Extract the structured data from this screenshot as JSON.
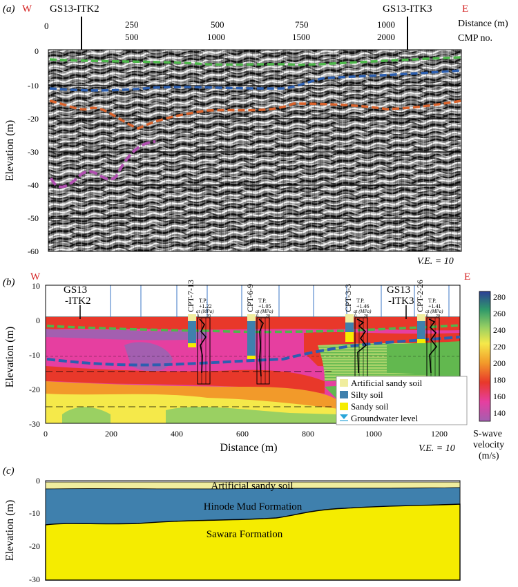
{
  "colors": {
    "west": "#d42020",
    "east": "#d42020",
    "green_horizon": "#4db84a",
    "blue_horizon": "#2c5fb0",
    "orange_horizon": "#d9622b",
    "purple_horizon": "#b04fb0",
    "artificial_sandy_soil": "#f0ed9e",
    "silty_soil": "#3f80ad",
    "sandy_soil": "#f5ec00",
    "groundwater": "#2aa5d9"
  },
  "panel_a": {
    "label": "(a)",
    "west_label": "W",
    "east_label": "E",
    "borehole_left": "GS13-ITK2",
    "borehole_right": "GS13-ITK3",
    "distance_unit": "Distance (m)",
    "cmp_unit": "CMP no.",
    "distance_ticks": [
      "0",
      "250",
      "500",
      "750",
      "1000"
    ],
    "cmp_ticks": [
      "500",
      "1000",
      "1500",
      "2000"
    ],
    "ylabel": "Elevation (m)",
    "y_ticks": [
      "0",
      "-10",
      "-20",
      "-30",
      "-40",
      "-50",
      "-60"
    ],
    "ve": "V.E. = 10"
  },
  "panel_b": {
    "label": "(b)",
    "west_label": "W",
    "east_label": "E",
    "borehole_left": [
      "GS13",
      "-ITK2"
    ],
    "borehole_right": [
      "GS13",
      "-ITK3"
    ],
    "ylabel": "Elevation (m)",
    "xlabel": "Distance (m)",
    "y_ticks": [
      "10",
      "0",
      "-10",
      "-20",
      "-30"
    ],
    "x_ticks": [
      "0",
      "200",
      "400",
      "600",
      "800",
      "1000",
      "1200"
    ],
    "ve": "V.E. = 10",
    "cpts": [
      {
        "name": "CPT-7-13",
        "tp": "T.P.",
        "tp_val": "+1.22",
        "qt": "qt (MPa)",
        "scale0": "0",
        "scale20": "20"
      },
      {
        "name": "CPT-6-9",
        "tp": "T.P.",
        "tp_val": "+1.05",
        "qt": "qt (MPa)",
        "scale0": "0",
        "scale20": "20"
      },
      {
        "name": "CPT-3-3",
        "tp": "T.P.",
        "tp_val": "+1.46",
        "qt": "qt (MPa)",
        "scale0": "0",
        "scale20": "20"
      },
      {
        "name": "CPT-2-26",
        "tp": "T.P.",
        "tp_val": "+1.41",
        "qt": "qt (MPa)",
        "scale0": "0",
        "scale20": "20"
      }
    ],
    "legend": [
      {
        "label": "Artificial sandy soil"
      },
      {
        "label": "Silty soil"
      },
      {
        "label": "Sandy soil"
      },
      {
        "label": "Groundwater level"
      }
    ],
    "colorbar": {
      "ticks": [
        "280",
        "260",
        "240",
        "220",
        "200",
        "180",
        "160",
        "140"
      ],
      "title_lines": [
        "S-wave",
        "velocity",
        "(m/s)"
      ]
    }
  },
  "panel_c": {
    "label": "(c)",
    "ylabel": "Elevation (m)",
    "y_ticks": [
      "0",
      "-10",
      "-20",
      "-30"
    ],
    "layers": [
      "Artificial sandy soil",
      "Hinode Mud Formation",
      "Sawara Formation"
    ]
  }
}
